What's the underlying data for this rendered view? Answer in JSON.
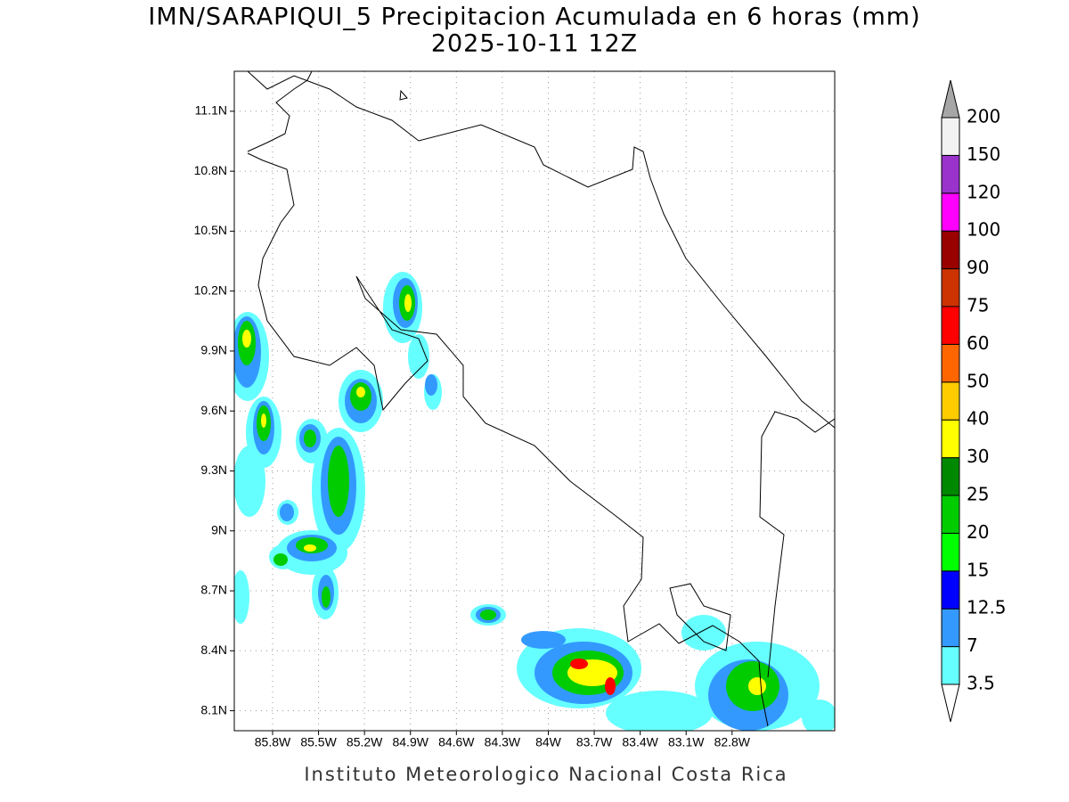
{
  "title": "IMN/SARAPIQUI_5 Precipitacion Acumulada en 6 horas (mm)",
  "subtitle": "2025-10-11 12Z",
  "footer": "Instituto Meteorologico Nacional Costa Rica",
  "map": {
    "xlim": [
      -86.05,
      -82.13
    ],
    "ylim": [
      8.0,
      11.3
    ],
    "xticks": [
      {
        "value": -85.8,
        "label": "85.8W"
      },
      {
        "value": -85.5,
        "label": "85.5W"
      },
      {
        "value": -85.2,
        "label": "85.2W"
      },
      {
        "value": -84.9,
        "label": "84.9W"
      },
      {
        "value": -84.6,
        "label": "84.6W"
      },
      {
        "value": -84.3,
        "label": "84.3W"
      },
      {
        "value": -84.0,
        "label": "84W"
      },
      {
        "value": -83.7,
        "label": "83.7W"
      },
      {
        "value": -83.4,
        "label": "83.4W"
      },
      {
        "value": -83.1,
        "label": "83.1W"
      },
      {
        "value": -82.8,
        "label": "82.8W"
      }
    ],
    "yticks": [
      {
        "value": 8.1,
        "label": "8.1N"
      },
      {
        "value": 8.4,
        "label": "8.4N"
      },
      {
        "value": 8.7,
        "label": "8.7N"
      },
      {
        "value": 9.0,
        "label": "9N"
      },
      {
        "value": 9.3,
        "label": "9.3N"
      },
      {
        "value": 9.6,
        "label": "9.6N"
      },
      {
        "value": 9.9,
        "label": "9.9N"
      },
      {
        "value": 10.2,
        "label": "10.2N"
      },
      {
        "value": 10.5,
        "label": "10.5N"
      },
      {
        "value": 10.8,
        "label": "10.8N"
      },
      {
        "value": 11.1,
        "label": "11.1N"
      }
    ],
    "grid": true
  },
  "colorbar": {
    "levels": [
      3.5,
      7,
      12.5,
      15,
      20,
      25,
      30,
      40,
      50,
      60,
      75,
      90,
      100,
      120,
      150,
      200
    ],
    "colors": [
      "#ffffff",
      "#66ffff",
      "#3399ff",
      "#0000ff",
      "#00ff00",
      "#00cc00",
      "#008800",
      "#ffff00",
      "#ffcc00",
      "#ff6600",
      "#ff0000",
      "#cc3300",
      "#990000",
      "#ff00ff",
      "#9933cc",
      "#f2f2f2",
      "#a6a6a6"
    ]
  }
}
